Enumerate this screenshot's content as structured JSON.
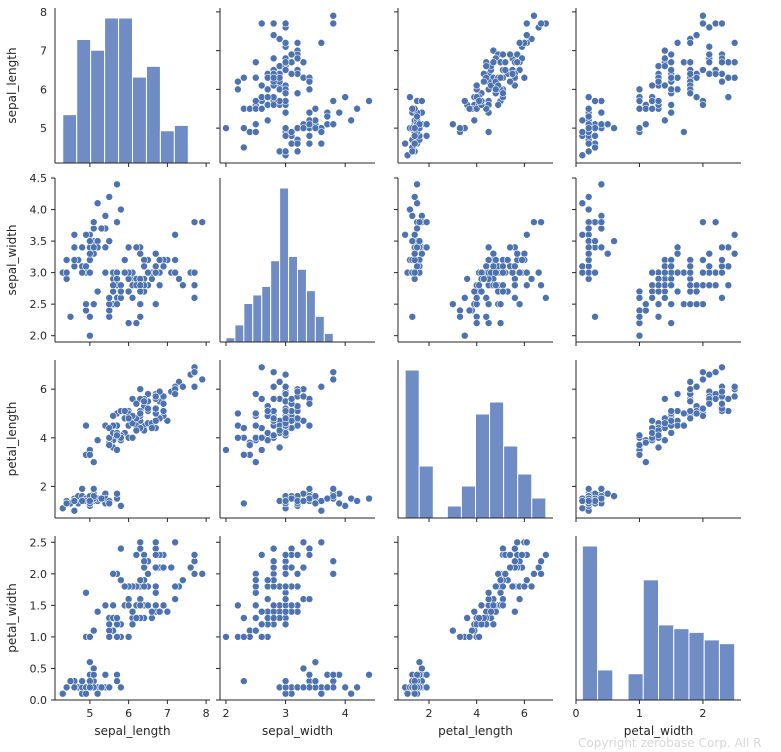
{
  "chart_data": {
    "type": "scatter",
    "variables": [
      "sepal_length",
      "sepal_width",
      "petal_length",
      "petal_width"
    ],
    "ranges": {
      "sepal_length": [
        4.1,
        8.1
      ],
      "sepal_width": [
        1.9,
        4.5
      ],
      "petal_length": [
        0.7,
        7.2
      ],
      "petal_width": [
        0.0,
        2.6
      ]
    },
    "ticks": {
      "sepal_length": [
        "5",
        "6",
        "7",
        "8"
      ],
      "sepal_width": [
        "2.0",
        "2.5",
        "3.0",
        "3.5",
        "4.0",
        "4.5"
      ],
      "petal_length": [
        "2",
        "4",
        "6"
      ],
      "petal_width": [
        "0.0",
        "0.5",
        "1.0",
        "1.5",
        "2.0",
        "2.5"
      ]
    },
    "ticks_bottom": {
      "sepal_length": [
        "5",
        "6",
        "7",
        "8"
      ],
      "sepal_width": [
        "2",
        "3",
        "4"
      ],
      "petal_length": [
        "2",
        "4",
        "6"
      ],
      "petal_width": [
        "0",
        "1",
        "2"
      ]
    },
    "point_color": "#4c72b0",
    "bar_color": "#6f8dc4",
    "histograms": {
      "sepal_length": {
        "edges": [
          4.3,
          4.66,
          5.02,
          5.38,
          5.74,
          6.1,
          6.46,
          6.82,
          7.18,
          7.54,
          7.9
        ],
        "counts": [
          9,
          23,
          21,
          27,
          27,
          16,
          18,
          6,
          7,
          0
        ],
        "max": 27
      },
      "sepal_width": {
        "edges": [
          2.0,
          2.15,
          2.3,
          2.45,
          2.6,
          2.75,
          2.9,
          3.05,
          3.2,
          3.35,
          3.5,
          3.65,
          3.8,
          3.95,
          4.1,
          4.25,
          4.4
        ],
        "counts": [
          1,
          4,
          9,
          11,
          13,
          19,
          36,
          20,
          17,
          12,
          6,
          2,
          0,
          0,
          0,
          0
        ],
        "max": 36
      },
      "petal_length": {
        "edges": [
          1.0,
          1.59,
          2.18,
          2.77,
          3.36,
          3.95,
          4.54,
          5.13,
          5.72,
          6.31,
          6.9
        ],
        "counts": [
          37,
          13,
          0,
          3,
          8,
          26,
          29,
          18,
          11,
          5
        ],
        "max": 37
      },
      "petal_width": {
        "edges": [
          0.1,
          0.34,
          0.58,
          0.82,
          1.06,
          1.3,
          1.54,
          1.78,
          2.02,
          2.26,
          2.5
        ],
        "counts": [
          41,
          8,
          0,
          7,
          32,
          20,
          19,
          18,
          16,
          15
        ],
        "max": 41
      }
    },
    "iris": [
      [
        5.1,
        3.5,
        1.4,
        0.2
      ],
      [
        4.9,
        3.0,
        1.4,
        0.2
      ],
      [
        4.7,
        3.2,
        1.3,
        0.2
      ],
      [
        4.6,
        3.1,
        1.5,
        0.2
      ],
      [
        5.0,
        3.6,
        1.4,
        0.2
      ],
      [
        5.4,
        3.9,
        1.7,
        0.4
      ],
      [
        4.6,
        3.4,
        1.4,
        0.3
      ],
      [
        5.0,
        3.4,
        1.5,
        0.2
      ],
      [
        4.4,
        2.9,
        1.4,
        0.2
      ],
      [
        4.9,
        3.1,
        1.5,
        0.1
      ],
      [
        5.4,
        3.7,
        1.5,
        0.2
      ],
      [
        4.8,
        3.4,
        1.6,
        0.2
      ],
      [
        4.8,
        3.0,
        1.4,
        0.1
      ],
      [
        4.3,
        3.0,
        1.1,
        0.1
      ],
      [
        5.8,
        4.0,
        1.2,
        0.2
      ],
      [
        5.7,
        4.4,
        1.5,
        0.4
      ],
      [
        5.4,
        3.9,
        1.3,
        0.4
      ],
      [
        5.1,
        3.5,
        1.4,
        0.3
      ],
      [
        5.7,
        3.8,
        1.7,
        0.3
      ],
      [
        5.1,
        3.8,
        1.5,
        0.3
      ],
      [
        5.4,
        3.4,
        1.7,
        0.2
      ],
      [
        5.1,
        3.7,
        1.5,
        0.4
      ],
      [
        4.6,
        3.6,
        1.0,
        0.2
      ],
      [
        5.1,
        3.3,
        1.7,
        0.5
      ],
      [
        4.8,
        3.4,
        1.9,
        0.2
      ],
      [
        5.0,
        3.0,
        1.6,
        0.2
      ],
      [
        5.0,
        3.4,
        1.6,
        0.4
      ],
      [
        5.2,
        3.5,
        1.5,
        0.2
      ],
      [
        5.2,
        3.4,
        1.4,
        0.2
      ],
      [
        4.7,
        3.2,
        1.6,
        0.2
      ],
      [
        4.8,
        3.1,
        1.6,
        0.2
      ],
      [
        5.4,
        3.4,
        1.5,
        0.4
      ],
      [
        5.2,
        4.1,
        1.5,
        0.1
      ],
      [
        5.5,
        4.2,
        1.4,
        0.2
      ],
      [
        4.9,
        3.1,
        1.5,
        0.2
      ],
      [
        5.0,
        3.2,
        1.2,
        0.2
      ],
      [
        5.5,
        3.5,
        1.3,
        0.2
      ],
      [
        4.9,
        3.6,
        1.4,
        0.1
      ],
      [
        4.4,
        3.0,
        1.3,
        0.2
      ],
      [
        5.1,
        3.4,
        1.5,
        0.2
      ],
      [
        5.0,
        3.5,
        1.3,
        0.3
      ],
      [
        4.5,
        2.3,
        1.3,
        0.3
      ],
      [
        4.4,
        3.2,
        1.3,
        0.2
      ],
      [
        5.0,
        3.5,
        1.6,
        0.6
      ],
      [
        5.1,
        3.8,
        1.9,
        0.4
      ],
      [
        4.8,
        3.0,
        1.4,
        0.3
      ],
      [
        5.1,
        3.8,
        1.6,
        0.2
      ],
      [
        4.6,
        3.2,
        1.4,
        0.2
      ],
      [
        5.3,
        3.7,
        1.5,
        0.2
      ],
      [
        5.0,
        3.3,
        1.4,
        0.2
      ],
      [
        7.0,
        3.2,
        4.7,
        1.4
      ],
      [
        6.4,
        3.2,
        4.5,
        1.5
      ],
      [
        6.9,
        3.1,
        4.9,
        1.5
      ],
      [
        5.5,
        2.3,
        4.0,
        1.3
      ],
      [
        6.5,
        2.8,
        4.6,
        1.5
      ],
      [
        5.7,
        2.8,
        4.5,
        1.3
      ],
      [
        6.3,
        3.3,
        4.7,
        1.6
      ],
      [
        4.9,
        2.4,
        3.3,
        1.0
      ],
      [
        6.6,
        2.9,
        4.6,
        1.3
      ],
      [
        5.2,
        2.7,
        3.9,
        1.4
      ],
      [
        5.0,
        2.0,
        3.5,
        1.0
      ],
      [
        5.9,
        3.0,
        4.2,
        1.5
      ],
      [
        6.0,
        2.2,
        4.0,
        1.0
      ],
      [
        6.1,
        2.9,
        4.7,
        1.4
      ],
      [
        5.6,
        2.9,
        3.6,
        1.3
      ],
      [
        6.7,
        3.1,
        4.4,
        1.4
      ],
      [
        5.6,
        3.0,
        4.5,
        1.5
      ],
      [
        5.8,
        2.7,
        4.1,
        1.0
      ],
      [
        6.2,
        2.2,
        4.5,
        1.5
      ],
      [
        5.6,
        2.5,
        3.9,
        1.1
      ],
      [
        5.9,
        3.2,
        4.8,
        1.8
      ],
      [
        6.1,
        2.8,
        4.0,
        1.3
      ],
      [
        6.3,
        2.5,
        4.9,
        1.5
      ],
      [
        6.1,
        2.8,
        4.7,
        1.2
      ],
      [
        6.4,
        2.9,
        4.3,
        1.3
      ],
      [
        6.6,
        3.0,
        4.4,
        1.4
      ],
      [
        6.8,
        2.8,
        4.8,
        1.4
      ],
      [
        6.7,
        3.0,
        5.0,
        1.7
      ],
      [
        6.0,
        2.9,
        4.5,
        1.5
      ],
      [
        5.7,
        2.6,
        3.5,
        1.0
      ],
      [
        5.5,
        2.4,
        3.8,
        1.1
      ],
      [
        5.5,
        2.4,
        3.7,
        1.0
      ],
      [
        5.8,
        2.7,
        3.9,
        1.2
      ],
      [
        6.0,
        2.7,
        5.1,
        1.6
      ],
      [
        5.4,
        3.0,
        4.5,
        1.5
      ],
      [
        6.0,
        3.4,
        4.5,
        1.6
      ],
      [
        6.7,
        3.1,
        4.7,
        1.5
      ],
      [
        6.3,
        2.3,
        4.4,
        1.3
      ],
      [
        5.6,
        3.0,
        4.1,
        1.3
      ],
      [
        5.5,
        2.5,
        4.0,
        1.3
      ],
      [
        5.5,
        2.6,
        4.4,
        1.2
      ],
      [
        6.1,
        3.0,
        4.6,
        1.4
      ],
      [
        5.8,
        2.6,
        4.0,
        1.2
      ],
      [
        5.0,
        2.3,
        3.3,
        1.0
      ],
      [
        5.6,
        2.7,
        4.2,
        1.3
      ],
      [
        5.7,
        3.0,
        4.2,
        1.2
      ],
      [
        5.7,
        2.9,
        4.2,
        1.3
      ],
      [
        6.2,
        2.9,
        4.3,
        1.3
      ],
      [
        5.1,
        2.5,
        3.0,
        1.1
      ],
      [
        5.7,
        2.8,
        4.1,
        1.3
      ],
      [
        6.3,
        3.3,
        6.0,
        2.5
      ],
      [
        5.8,
        2.7,
        5.1,
        1.9
      ],
      [
        7.1,
        3.0,
        5.9,
        2.1
      ],
      [
        6.3,
        2.9,
        5.6,
        1.8
      ],
      [
        6.5,
        3.0,
        5.8,
        2.2
      ],
      [
        7.6,
        3.0,
        6.6,
        2.1
      ],
      [
        4.9,
        2.5,
        4.5,
        1.7
      ],
      [
        7.3,
        2.9,
        6.3,
        1.8
      ],
      [
        6.7,
        2.5,
        5.8,
        1.8
      ],
      [
        7.2,
        3.6,
        6.1,
        2.5
      ],
      [
        6.5,
        3.2,
        5.1,
        2.0
      ],
      [
        6.4,
        2.7,
        5.3,
        1.9
      ],
      [
        6.8,
        3.0,
        5.5,
        2.1
      ],
      [
        5.7,
        2.5,
        5.0,
        2.0
      ],
      [
        5.8,
        2.8,
        5.1,
        2.4
      ],
      [
        6.4,
        3.2,
        5.3,
        2.3
      ],
      [
        6.5,
        3.0,
        5.5,
        1.8
      ],
      [
        7.7,
        3.8,
        6.7,
        2.2
      ],
      [
        7.7,
        2.6,
        6.9,
        2.3
      ],
      [
        6.0,
        2.2,
        5.0,
        1.5
      ],
      [
        6.9,
        3.2,
        5.7,
        2.3
      ],
      [
        5.6,
        2.8,
        4.9,
        2.0
      ],
      [
        7.7,
        2.8,
        6.7,
        2.0
      ],
      [
        6.3,
        2.7,
        4.9,
        1.8
      ],
      [
        6.7,
        3.3,
        5.7,
        2.1
      ],
      [
        7.2,
        3.2,
        6.0,
        1.8
      ],
      [
        6.2,
        2.8,
        4.8,
        1.8
      ],
      [
        6.1,
        3.0,
        4.9,
        1.8
      ],
      [
        6.4,
        2.8,
        5.6,
        2.1
      ],
      [
        7.2,
        3.0,
        5.8,
        1.6
      ],
      [
        7.4,
        2.8,
        6.1,
        1.9
      ],
      [
        7.9,
        3.8,
        6.4,
        2.0
      ],
      [
        6.4,
        2.8,
        5.6,
        2.2
      ],
      [
        6.3,
        2.8,
        5.1,
        1.5
      ],
      [
        6.1,
        2.6,
        5.6,
        1.4
      ],
      [
        7.7,
        3.0,
        6.1,
        2.3
      ],
      [
        6.3,
        3.4,
        5.6,
        2.4
      ],
      [
        6.4,
        3.1,
        5.5,
        1.8
      ],
      [
        6.0,
        3.0,
        4.8,
        1.8
      ],
      [
        6.9,
        3.1,
        5.4,
        2.1
      ],
      [
        6.7,
        3.1,
        5.6,
        2.4
      ],
      [
        6.9,
        3.1,
        5.1,
        2.3
      ],
      [
        5.8,
        2.7,
        5.1,
        1.9
      ],
      [
        6.8,
        3.2,
        5.9,
        2.3
      ],
      [
        6.7,
        3.3,
        5.7,
        2.5
      ],
      [
        6.7,
        3.0,
        5.2,
        2.3
      ],
      [
        6.3,
        2.5,
        5.0,
        1.9
      ],
      [
        6.5,
        3.0,
        5.2,
        2.0
      ],
      [
        6.2,
        3.4,
        5.4,
        2.3
      ],
      [
        5.9,
        3.0,
        5.1,
        1.8
      ]
    ]
  },
  "watermark": "Copyright zerobase Corp. All R"
}
